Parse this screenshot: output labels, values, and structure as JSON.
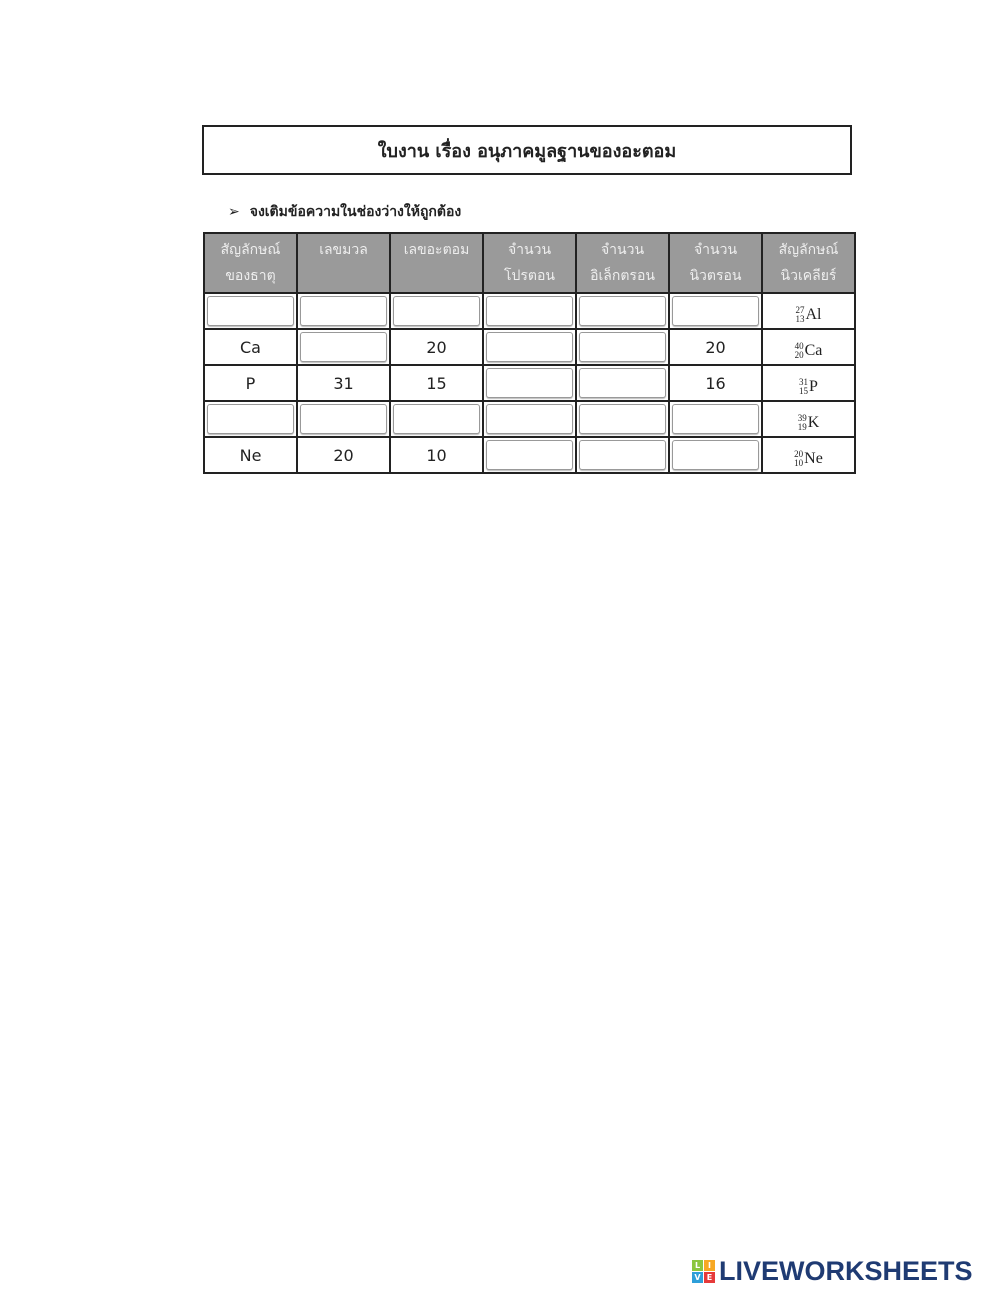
{
  "title": "ใบงาน เรื่อง อนุภาคมูลฐานของอะตอม",
  "instruction": "จงเติมข้อความในช่องว่างให้ถูกต้อง",
  "table": {
    "headers": [
      [
        "สัญลักษณ์",
        "ของธาตุ"
      ],
      [
        "เลขมวล",
        ""
      ],
      [
        "เลขอะตอม",
        ""
      ],
      [
        "จำนวน",
        "โปรตอน"
      ],
      [
        "จำนวน",
        "อิเล็กตรอน"
      ],
      [
        "จำนวน",
        "นิวตรอน"
      ],
      [
        "สัญลักษณ์",
        "นิวเคลียร์"
      ]
    ],
    "rows": [
      {
        "cells": [
          null,
          null,
          null,
          null,
          null,
          null
        ],
        "nuclear": {
          "mass": "27",
          "atomic": "13",
          "symbol": "Al"
        }
      },
      {
        "cells": [
          "Ca",
          null,
          "20",
          null,
          null,
          "20"
        ],
        "nuclear": {
          "mass": "40",
          "atomic": "20",
          "symbol": "Ca"
        }
      },
      {
        "cells": [
          "P",
          "31",
          "15",
          null,
          null,
          "16"
        ],
        "nuclear": {
          "mass": "31",
          "atomic": "15",
          "symbol": "P"
        }
      },
      {
        "cells": [
          null,
          null,
          null,
          null,
          null,
          null
        ],
        "nuclear": {
          "mass": "39",
          "atomic": "19",
          "symbol": "K"
        }
      },
      {
        "cells": [
          "Ne",
          "20",
          "10",
          null,
          null,
          null
        ],
        "nuclear": {
          "mass": "20",
          "atomic": "10",
          "symbol": "Ne"
        }
      }
    ]
  },
  "logo": {
    "blocks": [
      "L",
      "I",
      "V",
      "E"
    ],
    "text": "LIVEWORKSHEETS",
    "colors": [
      "#8cc63f",
      "#f7a823",
      "#2e9fd9",
      "#e63a3a"
    ]
  }
}
